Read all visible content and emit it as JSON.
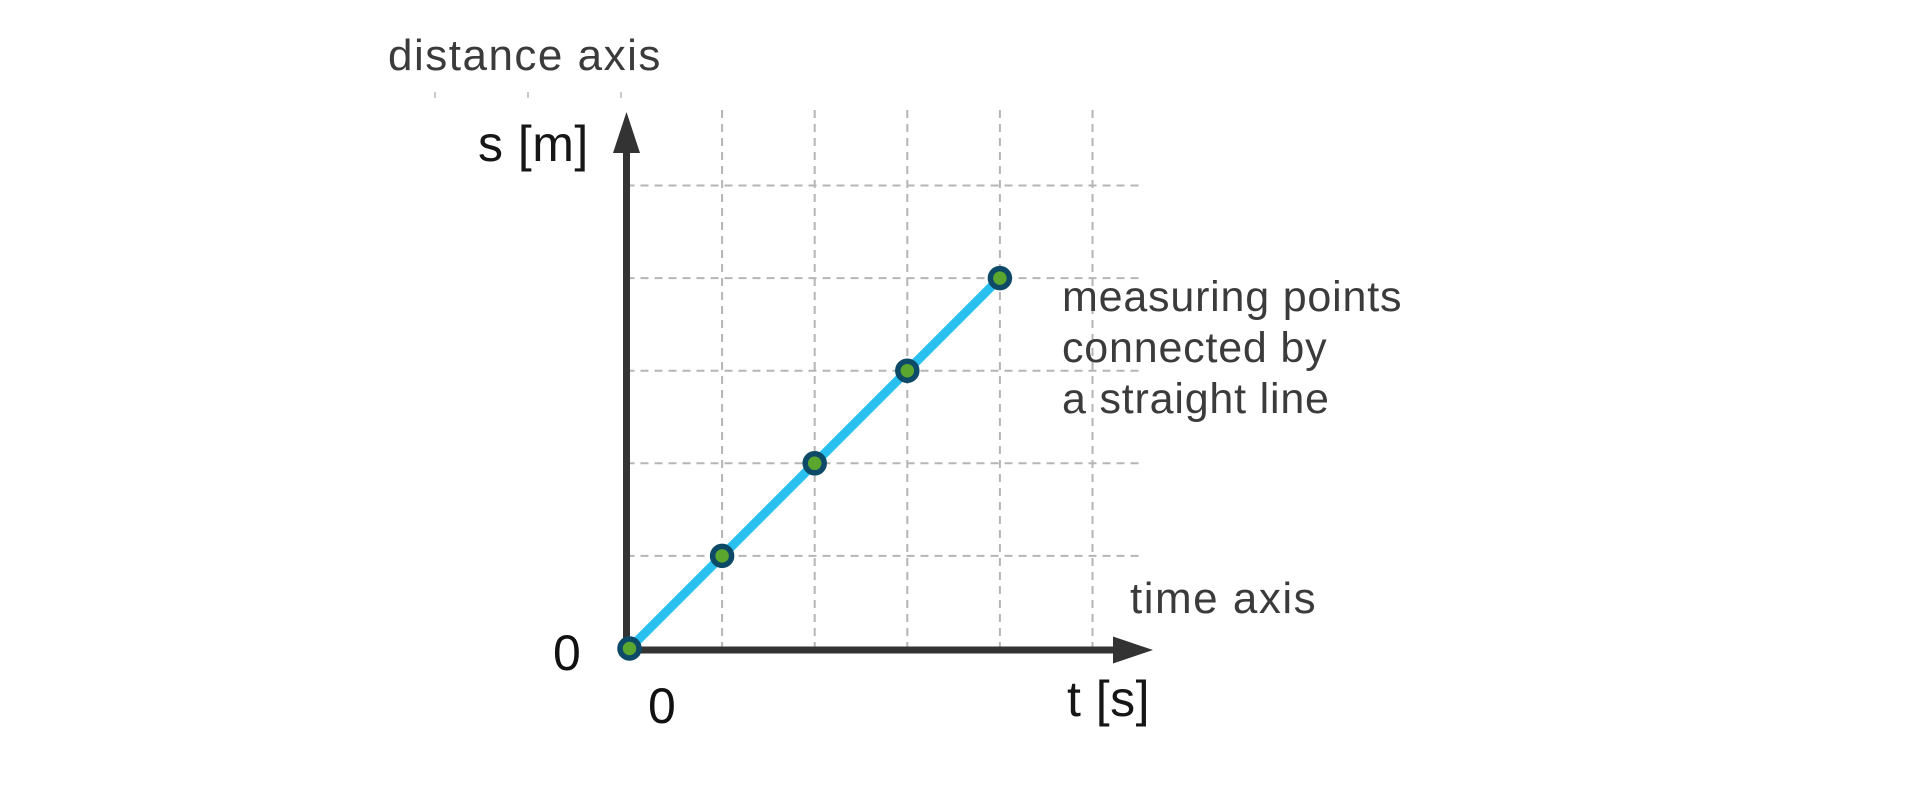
{
  "labels": {
    "y_axis_name": "distance axis",
    "y_axis_unit": "s [m]",
    "x_axis_name": "time axis",
    "x_axis_unit": "t [s]",
    "origin_zero_y": "0",
    "origin_zero_x": "0",
    "annotation_line1": "measuring points",
    "annotation_line2": "connected by",
    "annotation_line3": "a straight line"
  },
  "chart_data": {
    "type": "line",
    "x": [
      0,
      1,
      2,
      3,
      4
    ],
    "y": [
      0,
      1,
      2,
      3,
      4
    ],
    "xlabel": "t [s]",
    "ylabel": "s [m]",
    "x_axis_name": "time axis",
    "y_axis_name": "distance axis",
    "origin_tick_label": "0",
    "annotation": "measuring points connected by a straight line",
    "grid": "dashed",
    "grid_steps_x": 5,
    "grid_steps_y": 5,
    "xlim": [
      0,
      5.7
    ],
    "ylim": [
      0,
      5.8
    ],
    "legend": "none",
    "colors": {
      "line": "#29c0ef",
      "point_fill": "#5aa62f",
      "point_stroke": "#0c4a68",
      "axis": "#333333",
      "grid": "#b5b5b5",
      "grid_remnant": "#c9c9c9",
      "label": "#3b3b3b",
      "unit_label": "#161616"
    }
  }
}
